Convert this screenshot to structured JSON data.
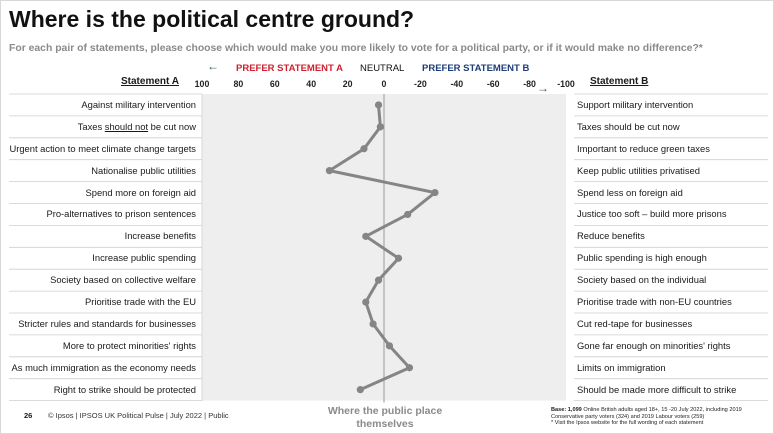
{
  "title": "Where is the political centre ground?",
  "subtitle": "For each pair of statements, please choose which would make you more likely to vote for a political party, or if it would make no difference?*",
  "header": {
    "statement_a": "Statement A",
    "statement_b": "Statement B",
    "prefer_a": "PREFER STATEMENT A",
    "neutral": "NEUTRAL",
    "prefer_b": "PREFER STATEMENT B",
    "arrow_color": "#2e5a55",
    "prefer_a_color": "#d01f2e",
    "prefer_b_color": "#1d3d7a"
  },
  "statements_a": [
    "Against military intervention",
    "Taxes should not be cut now",
    "Urgent action to meet climate change targets",
    "Nationalise public utilities",
    "Spend more on foreign aid",
    "Pro-alternatives to prison sentences",
    "Increase benefits",
    "Increase public spending",
    "Society based on collective welfare",
    "Prioritise trade with the EU",
    "Stricter rules and standards for businesses",
    "More to protect minorities' rights",
    "As much immigration as the economy needs",
    "Right to strike should be protected"
  ],
  "statements_b": [
    "Support military intervention",
    "Taxes should be cut now",
    "Important to reduce green taxes",
    "Keep public utilities privatised",
    "Spend less on foreign aid",
    "Justice too soft – build more prisons",
    "Reduce benefits",
    "Public spending is high enough",
    "Society based on the individual",
    "Prioritise trade with non-EU countries",
    "Cut red-tape for businesses",
    "Gone far enough on minorities' rights",
    "Limits on immigration",
    "Should be made more difficult to strike"
  ],
  "chart_data": {
    "type": "line",
    "orientation": "vertical-profile",
    "x_axis_ticks": [
      "100",
      "80",
      "60",
      "40",
      "20",
      "0",
      "-20",
      "-40",
      "-60",
      "-80",
      "-100"
    ],
    "xlim": [
      100,
      -100
    ],
    "categories": [
      "Against military intervention / Support military intervention",
      "Taxes should not be cut now / Taxes should be cut now",
      "Urgent action to meet climate change targets / Important to reduce green taxes",
      "Nationalise public utilities / Keep public utilities privatised",
      "Spend more on foreign aid / Spend less on foreign aid",
      "Pro-alternatives to prison sentences / Justice too soft – build more prisons",
      "Increase benefits / Reduce benefits",
      "Increase public spending / Public spending is high enough",
      "Society based on collective welfare / Society based on the individual",
      "Prioritise trade with the EU / Prioritise trade with non-EU countries",
      "Stricter rules and standards for businesses / Cut red-tape for businesses",
      "More to protect minorities' rights / Gone far enough on minorities' rights",
      "As much immigration as the economy needs / Limits on immigration",
      "Right to strike should be protected / Should be made more difficult to strike"
    ],
    "values": [
      3,
      2,
      11,
      30,
      -28,
      -13,
      10,
      -8,
      3,
      10,
      6,
      -3,
      -14,
      13
    ],
    "line_color": "#858585",
    "band_color": "#eeeeee",
    "grid": false
  },
  "bottom_label": "Where the public place themselves",
  "footer": {
    "page": "26",
    "copyright": "© Ipsos | IPSOS UK Political Pulse | July 2022 | Public",
    "base_bold": "Base: 1,099",
    "base_text": " Online British adults aged 18+, 15 -20 July 2022, including 2019 Conservative party voters (324) and 2019 Labour voters (259)",
    "base_note": "* Visit the Ipsos website for the full wording of each statement"
  }
}
